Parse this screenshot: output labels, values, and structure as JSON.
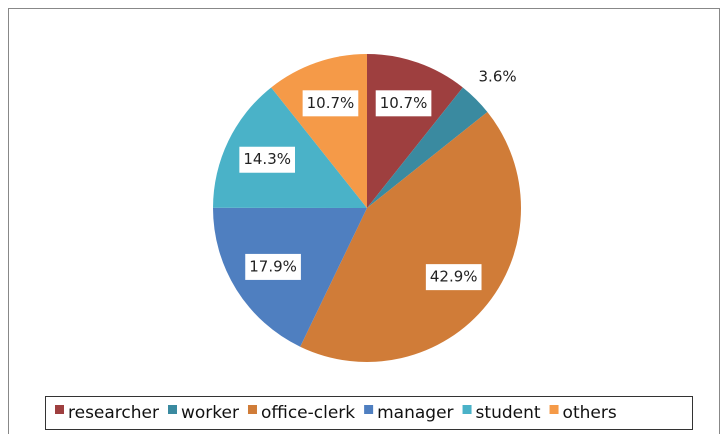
{
  "chart_data": {
    "type": "pie",
    "categories": [
      "researcher",
      "worker",
      "office-clerk",
      "manager",
      "student",
      "others"
    ],
    "values": [
      10.7,
      3.6,
      42.9,
      17.9,
      14.3,
      10.7
    ],
    "value_labels": [
      "10.7%",
      "3.6%",
      "42.9%",
      "17.9%",
      "14.3%",
      "10.7%"
    ],
    "colors": [
      "#9e3f3f",
      "#3a8aa0",
      "#d07c38",
      "#4f7fc0",
      "#4ab2c8",
      "#f59a48"
    ],
    "legend": "bottom"
  }
}
